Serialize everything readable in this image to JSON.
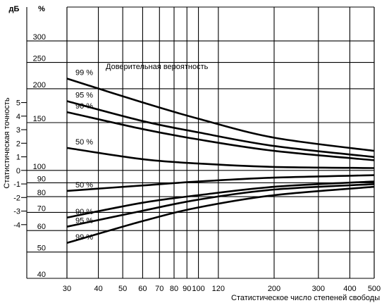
{
  "chart_data": {
    "type": "line",
    "x_scale": "log",
    "xlim": [
      30,
      500
    ],
    "xticks": [
      30,
      40,
      50,
      60,
      70,
      80,
      90,
      100,
      120,
      200,
      300,
      400,
      500
    ],
    "xtick_labels": [
      "30",
      "40",
      "50",
      "60",
      "70",
      "80",
      "90",
      "100",
      "120",
      "200",
      "300",
      "400",
      "500"
    ],
    "xlabel": "Статистическое число степеней свободы",
    "ylim": [
      40,
      400
    ],
    "y_scale": "log",
    "yticks_percent": [
      40,
      50,
      60,
      70,
      80,
      90,
      100,
      150,
      200,
      250,
      300
    ],
    "ytick_labels_percent": [
      "40",
      "50",
      "60",
      "70",
      "80",
      "90",
      "100",
      "150",
      "200",
      "250",
      "300"
    ],
    "y_unit_percent": "%",
    "yticks_db": [
      -4,
      -3,
      -2,
      -1,
      0,
      1,
      2,
      3,
      4,
      5
    ],
    "ytick_labels_db": [
      "-4",
      "-3",
      "-2",
      "-1",
      "0",
      "1",
      "2",
      "3",
      "4",
      "5"
    ],
    "y_unit_db": "дБ",
    "ylabel": "Статистическая точность",
    "legend_title": "Доверительная вероятность",
    "series": [
      {
        "name": "99 %",
        "label": "99 %",
        "x": [
          30,
          60,
          100,
          200,
          500
        ],
        "y": [
          218,
          178,
          155,
          132,
          118
        ]
      },
      {
        "name": "95 %",
        "label": "95 %",
        "x": [
          30,
          60,
          100,
          200,
          500
        ],
        "y": [
          180,
          152,
          138,
          123,
          112
        ]
      },
      {
        "name": "90 %",
        "label": "90 %",
        "x": [
          30,
          60,
          100,
          200,
          500
        ],
        "y": [
          164,
          142,
          130,
          118,
          109
        ]
      },
      {
        "name": "50 %",
        "label": "50 %",
        "x": [
          30,
          60,
          100,
          200,
          500
        ],
        "y": [
          121,
          110,
          106,
          103,
          102
        ]
      },
      {
        "name": "50 %",
        "label": "50 %",
        "x": [
          30,
          60,
          100,
          200,
          500
        ],
        "y": [
          84,
          88,
          91,
          94,
          96
        ]
      },
      {
        "name": "90 %",
        "label": "90 %",
        "x": [
          30,
          60,
          100,
          200,
          500
        ],
        "y": [
          67,
          76,
          81,
          87,
          91
        ]
      },
      {
        "name": "95 %",
        "label": "95 %",
        "x": [
          30,
          60,
          100,
          200,
          500
        ],
        "y": [
          62,
          71,
          78,
          85,
          89
        ]
      },
      {
        "name": "99 %",
        "label": "99 %",
        "x": [
          30,
          60,
          100,
          200,
          500
        ],
        "y": [
          54,
          65,
          73,
          81,
          87
        ]
      }
    ],
    "grid": true
  }
}
